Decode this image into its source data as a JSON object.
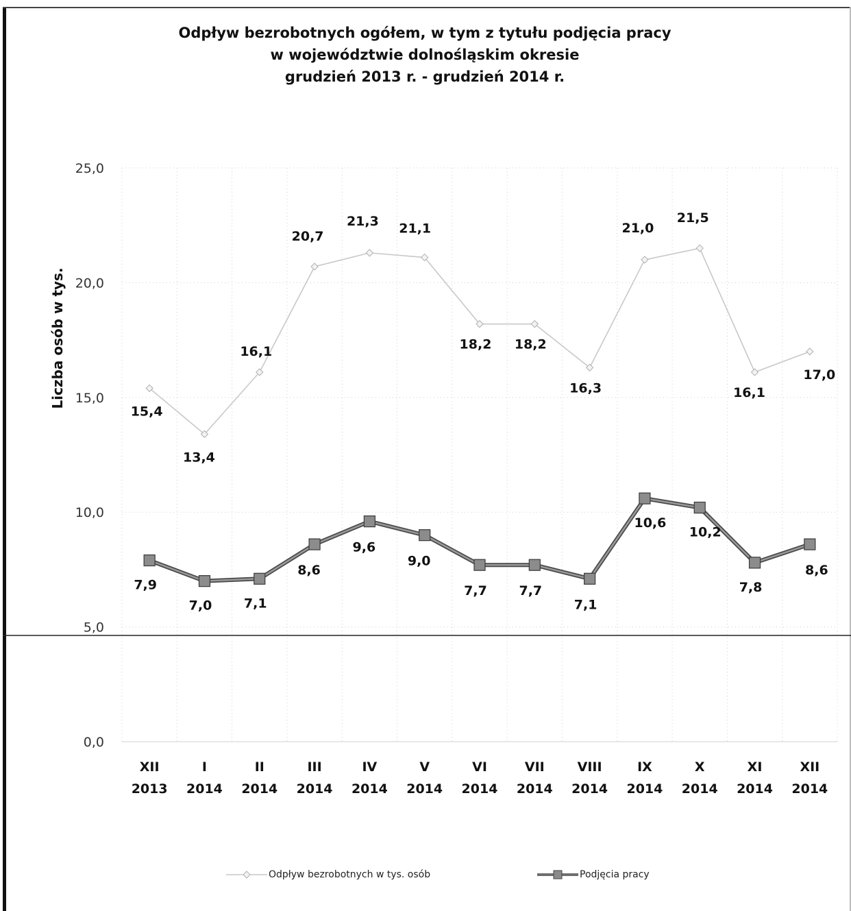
{
  "title_lines": [
    "Odpływ bezrobotnych ogółem, w tym z tytułu podjęcia pracy",
    "w województwie dolnośląskim okresie",
    "grudzień 2013 r. - grudzień 2014 r."
  ],
  "chart_data": {
    "type": "line",
    "title": "Odpływ bezrobotnych ogółem, w tym z tytułu podjęcia pracy w województwie dolnośląskim okresie grudzień 2013 r. - grudzień 2014 r.",
    "ylabel": "Liczba osób w tys.",
    "xlabel": "",
    "ylim": [
      0,
      25
    ],
    "yticks": [
      "0,0",
      "5,0",
      "10,0",
      "15,0",
      "20,0",
      "25,0"
    ],
    "grid": true,
    "legend_position": "bottom",
    "categories": [
      [
        "XII",
        "2013"
      ],
      [
        "I",
        "2014"
      ],
      [
        "II",
        "2014"
      ],
      [
        "III",
        "2014"
      ],
      [
        "IV",
        "2014"
      ],
      [
        "V",
        "2014"
      ],
      [
        "VI",
        "2014"
      ],
      [
        "VII",
        "2014"
      ],
      [
        "VIII",
        "2014"
      ],
      [
        "IX",
        "2014"
      ],
      [
        "X",
        "2014"
      ],
      [
        "XI",
        "2014"
      ],
      [
        "XII",
        "2014"
      ]
    ],
    "series": [
      {
        "name": "Odpływ bezrobotnych w tys. osób",
        "values": [
          15.4,
          13.4,
          16.1,
          20.7,
          21.3,
          21.1,
          18.2,
          18.2,
          16.3,
          21.0,
          21.5,
          16.1,
          17.0
        ],
        "labels": [
          "15,4",
          "13,4",
          "16,1",
          "20,7",
          "21,3",
          "21,1",
          "18,2",
          "18,2",
          "16,3",
          "21,0",
          "21,5",
          "16,1",
          "17,0"
        ],
        "color": "#c8c8c8",
        "marker": "diamond"
      },
      {
        "name": "Podjęcia pracy",
        "values": [
          7.9,
          7.0,
          7.1,
          8.6,
          9.6,
          9.0,
          7.7,
          7.7,
          7.1,
          10.6,
          10.2,
          7.8,
          8.6
        ],
        "labels": [
          "7,9",
          "7,0",
          "7,1",
          "8,6",
          "9,6",
          "9,0",
          "7,7",
          "7,7",
          "7,1",
          "10,6",
          "10,2",
          "7,8",
          "8,6"
        ],
        "color": "#6e6e6e",
        "marker": "square"
      }
    ]
  }
}
